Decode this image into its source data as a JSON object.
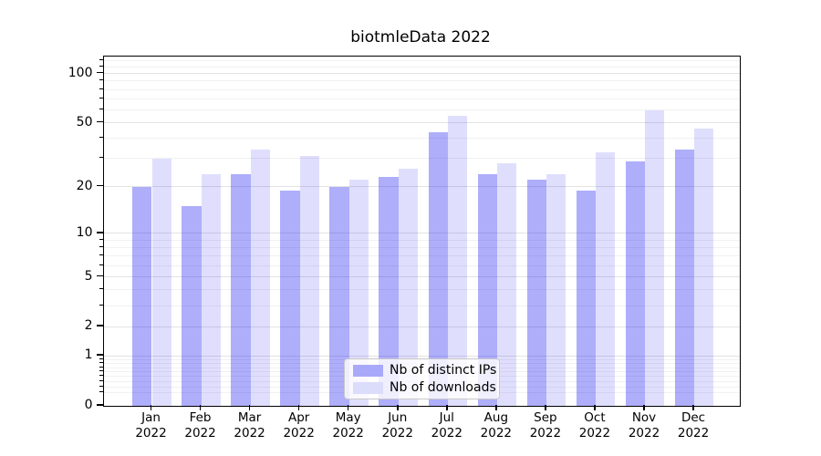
{
  "title": "biotmleData 2022",
  "chart_data": {
    "type": "bar",
    "title": "biotmleData 2022",
    "yscale": "log1p",
    "grid": true,
    "legend_position": "lower center",
    "ylim": [
      0,
      127
    ],
    "y_ticks": [
      0,
      1,
      2,
      5,
      10,
      20,
      50,
      100
    ],
    "y_tick_labels": [
      "0",
      "1",
      "2",
      "5",
      "10",
      "20",
      "50",
      "100"
    ],
    "y_minor_ticks": [
      0.2,
      0.3,
      0.4,
      0.5,
      0.6,
      0.7,
      0.8,
      0.9,
      3,
      4,
      6,
      7,
      8,
      9,
      30,
      40,
      60,
      70,
      80,
      90,
      110,
      120
    ],
    "categories": [
      "Jan 2022",
      "Feb 2022",
      "Mar 2022",
      "Apr 2022",
      "May 2022",
      "Jun 2022",
      "Jul 2022",
      "Aug 2022",
      "Sep 2022",
      "Oct 2022",
      "Nov 2022",
      "Dec 2022"
    ],
    "series": [
      {
        "name": "Nb of distinct IPs",
        "fill": "rgba(13,13,242,0.335)",
        "legend_fill": "#a9a9fa",
        "values": [
          20,
          15,
          24,
          19,
          20,
          23,
          44,
          24,
          22,
          19,
          29,
          34
        ]
      },
      {
        "name": "Nb of downloads",
        "fill": "rgba(13,13,242,0.135)",
        "legend_fill": "#dcdcfb",
        "values": [
          30,
          24,
          34,
          31,
          22,
          26,
          55,
          28,
          24,
          33,
          60,
          46
        ]
      }
    ],
    "colors": {
      "grid_major": "#e3e3e3",
      "grid_minor": "#f1f1f1",
      "axis": "#000000",
      "legend_border": "#c9c9c9"
    }
  }
}
